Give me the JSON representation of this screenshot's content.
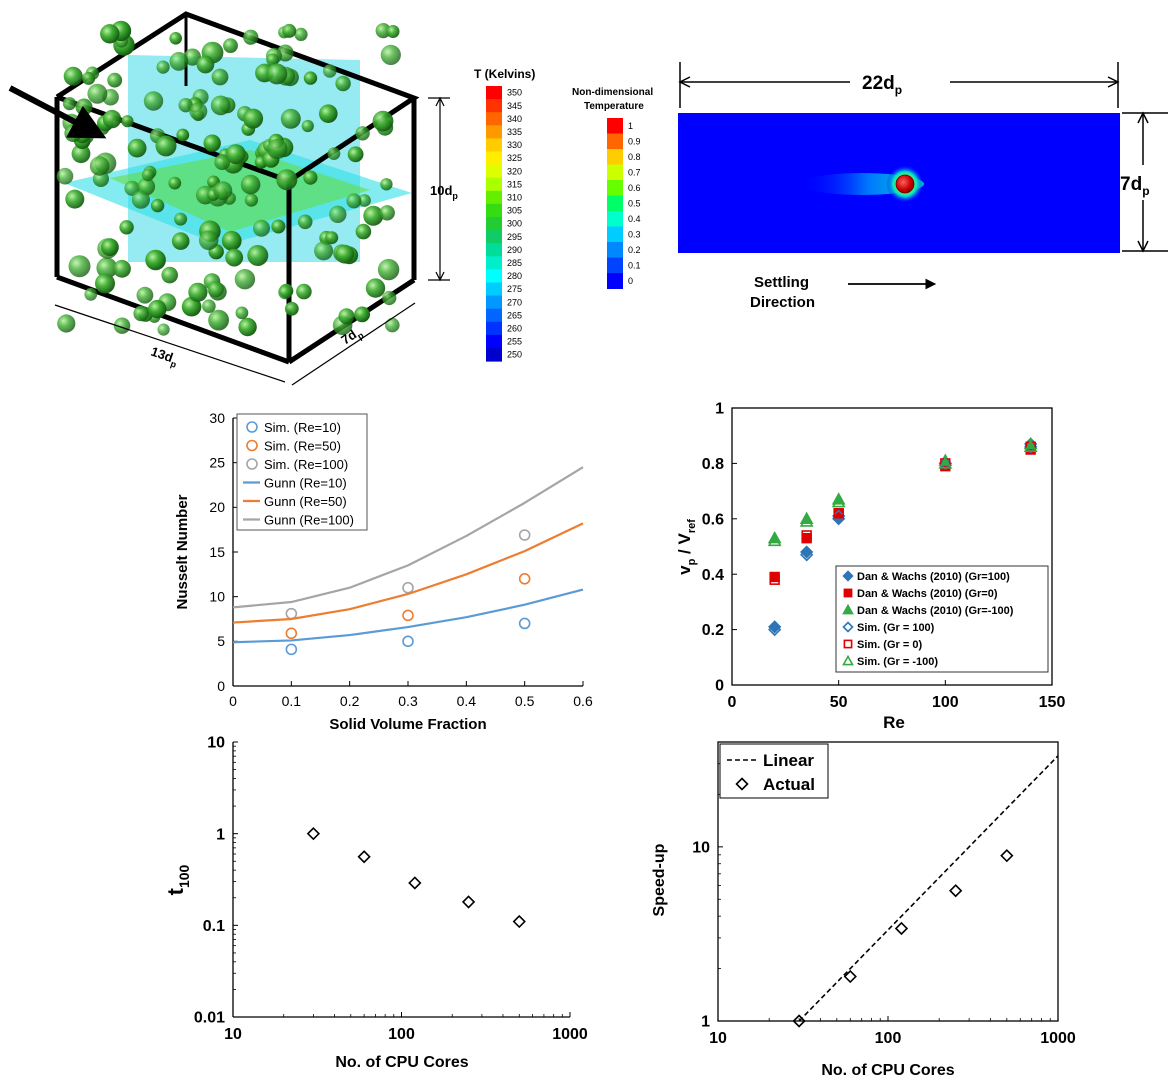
{
  "panel_3d": {
    "colorbar_title": "T (Kelvins)",
    "colorbar_ticks": [
      "350",
      "345",
      "340",
      "335",
      "330",
      "325",
      "320",
      "315",
      "310",
      "305",
      "300",
      "295",
      "290",
      "285",
      "280",
      "275",
      "270",
      "265",
      "260",
      "255",
      "250"
    ],
    "colorbar_colors": [
      "#ff0000",
      "#ff3300",
      "#ff6600",
      "#ff9900",
      "#ffcc00",
      "#ffee00",
      "#ddff00",
      "#aaff00",
      "#66ee00",
      "#33dd11",
      "#22cc33",
      "#11cc66",
      "#00dd99",
      "#00eecc",
      "#00ffff",
      "#00ccff",
      "#0099ff",
      "#0066ff",
      "#0033ff",
      "#0000ff",
      "#0000cc"
    ],
    "dim_height": "10d",
    "dim_length": "13d",
    "dim_depth": "7d",
    "dim_subscript": "p"
  },
  "panel_2d": {
    "colorbar_title_line1": "Non-dimensional",
    "colorbar_title_line2": "Temperature",
    "colorbar_ticks": [
      "1",
      "0.9",
      "0.8",
      "0.7",
      "0.6",
      "0.5",
      "0.4",
      "0.3",
      "0.2",
      "0.1",
      "0"
    ],
    "colorbar_colors": [
      "#ff0000",
      "#ff6600",
      "#ffcc00",
      "#ccff00",
      "#66ff00",
      "#00ff66",
      "#00ffcc",
      "#00ccff",
      "#0088ff",
      "#0044ff",
      "#0000ff"
    ],
    "dim_width": "22d",
    "dim_height": "7d",
    "dim_subscript": "p",
    "settling_line1": "Settling",
    "settling_line2": "Direction"
  },
  "chart_data": [
    {
      "type": "scatter",
      "xlabel": "Solid Volume Fraction",
      "ylabel": "Nusselt Number",
      "xlim": [
        0,
        0.6
      ],
      "ylim": [
        0,
        30
      ],
      "xticks": [
        0,
        0.1,
        0.2,
        0.3,
        0.4,
        0.5,
        0.6
      ],
      "xtick_labels": [
        "0",
        "0.1",
        "0.2",
        "0.3",
        "0.4",
        "0.5",
        "0.6"
      ],
      "yticks": [
        0,
        5,
        10,
        15,
        20,
        25,
        30
      ],
      "ytick_labels": [
        "0",
        "5",
        "10",
        "15",
        "20",
        "25",
        "30"
      ],
      "legend_position": "top-left",
      "series": [
        {
          "name": "Sim. (Re=10)",
          "kind": "marker",
          "marker": "circle-open",
          "color": "#5b9bd5",
          "x": [
            0.1,
            0.3,
            0.5
          ],
          "y": [
            4.1,
            5.0,
            7.0
          ]
        },
        {
          "name": "Sim. (Re=50)",
          "kind": "marker",
          "marker": "circle-open",
          "color": "#ed7d31",
          "x": [
            0.1,
            0.3,
            0.5
          ],
          "y": [
            5.9,
            7.9,
            12.0
          ]
        },
        {
          "name": "Sim. (Re=100)",
          "kind": "marker",
          "marker": "circle-open",
          "color": "#a5a5a5",
          "x": [
            0.1,
            0.3,
            0.5
          ],
          "y": [
            8.1,
            11.0,
            16.9
          ]
        },
        {
          "name": "Gunn (Re=10)",
          "kind": "line",
          "color": "#5b9bd5",
          "x": [
            0,
            0.1,
            0.2,
            0.3,
            0.4,
            0.5,
            0.6
          ],
          "y": [
            4.9,
            5.1,
            5.7,
            6.6,
            7.7,
            9.1,
            10.8
          ]
        },
        {
          "name": "Gunn (Re=50)",
          "kind": "line",
          "color": "#ed7d31",
          "x": [
            0,
            0.1,
            0.2,
            0.3,
            0.4,
            0.5,
            0.6
          ],
          "y": [
            7.1,
            7.5,
            8.6,
            10.3,
            12.5,
            15.1,
            18.2
          ]
        },
        {
          "name": "Gunn (Re=100)",
          "kind": "line",
          "color": "#a5a5a5",
          "x": [
            0,
            0.1,
            0.2,
            0.3,
            0.4,
            0.5,
            0.6
          ],
          "y": [
            8.8,
            9.4,
            11.0,
            13.5,
            16.8,
            20.5,
            24.5
          ]
        }
      ]
    },
    {
      "type": "scatter",
      "xlabel": "Re",
      "ylabel_main": "v",
      "ylabel_sub1": "p",
      "ylabel_sep": " / V",
      "ylabel_sub2": "ref",
      "xlim": [
        0,
        150
      ],
      "ylim": [
        0,
        1
      ],
      "xticks": [
        0,
        50,
        100,
        150
      ],
      "xtick_labels": [
        "0",
        "50",
        "100",
        "150"
      ],
      "yticks": [
        0,
        0.2,
        0.4,
        0.6,
        0.8,
        1
      ],
      "ytick_labels": [
        "0",
        "0.2",
        "0.4",
        "0.6",
        "0.8",
        "1"
      ],
      "legend_position": "bottom-right",
      "series": [
        {
          "name": "Dan & Wachs (2010) (Gr=100)",
          "marker": "diamond-filled",
          "color": "#2e75b6",
          "x": [
            20,
            35,
            50,
            100,
            140
          ],
          "y": [
            0.21,
            0.48,
            0.6,
            0.8,
            0.87
          ]
        },
        {
          "name": "Dan & Wachs (2010) (Gr=0)",
          "marker": "square-filled",
          "color": "#e00000",
          "x": [
            20,
            35,
            50,
            100,
            140
          ],
          "y": [
            0.39,
            0.53,
            0.62,
            0.79,
            0.85
          ]
        },
        {
          "name": "Dan & Wachs (2010) (Gr=-100)",
          "marker": "triangle-filled",
          "color": "#33aa44",
          "x": [
            20,
            35,
            50,
            100,
            140
          ],
          "y": [
            0.53,
            0.6,
            0.67,
            0.81,
            0.87
          ]
        },
        {
          "name": "Sim. (Gr = 100)",
          "marker": "diamond-open",
          "color": "#2e75b6",
          "x": [
            20,
            35,
            50,
            100,
            140
          ],
          "y": [
            0.2,
            0.47,
            0.61,
            0.8,
            0.86
          ]
        },
        {
          "name": "Sim. (Gr = 0)",
          "marker": "square-open",
          "color": "#e00000",
          "x": [
            20,
            35,
            50,
            100,
            140
          ],
          "y": [
            0.38,
            0.54,
            0.62,
            0.8,
            0.86
          ]
        },
        {
          "name": "Sim. (Gr = -100)",
          "marker": "triangle-open",
          "color": "#33aa44",
          "x": [
            20,
            35,
            50,
            100,
            140
          ],
          "y": [
            0.52,
            0.59,
            0.66,
            0.8,
            0.86
          ]
        }
      ]
    },
    {
      "type": "scatter",
      "xlabel": "No. of CPU Cores",
      "ylabel_main": "t",
      "ylabel_sub": "100",
      "xscale": "log",
      "yscale": "log",
      "xlim": [
        10,
        1000
      ],
      "ylim": [
        0.01,
        10
      ],
      "xticks": [
        10,
        100,
        1000
      ],
      "xtick_labels": [
        "10",
        "100",
        "1000"
      ],
      "yticks": [
        0.01,
        0.1,
        1,
        10
      ],
      "ytick_labels": [
        "0.01",
        "0.1",
        "1",
        "10"
      ],
      "series": [
        {
          "marker": "diamond-open",
          "color": "#000000",
          "x": [
            30,
            60,
            120,
            250,
            500
          ],
          "y": [
            1.0,
            0.56,
            0.29,
            0.18,
            0.11
          ]
        }
      ]
    },
    {
      "type": "scatter",
      "xlabel": "No. of CPU Cores",
      "ylabel": "Speed-up",
      "xscale": "log",
      "yscale": "log",
      "xlim": [
        10,
        1000
      ],
      "ylim": [
        1,
        40
      ],
      "xticks": [
        10,
        100,
        1000
      ],
      "xtick_labels": [
        "10",
        "100",
        "1000"
      ],
      "yticks": [
        1,
        10
      ],
      "ytick_labels": [
        "1",
        "10"
      ],
      "legend_position": "top-left",
      "series": [
        {
          "name": "Linear",
          "kind": "line",
          "dash": "dashed",
          "color": "#000000",
          "x": [
            30,
            1000
          ],
          "y": [
            1,
            33.3
          ]
        },
        {
          "name": "Actual",
          "kind": "marker",
          "marker": "diamond-open",
          "color": "#000000",
          "x": [
            30,
            60,
            120,
            250,
            500
          ],
          "y": [
            1.0,
            1.8,
            3.4,
            5.6,
            8.9
          ]
        }
      ]
    }
  ]
}
